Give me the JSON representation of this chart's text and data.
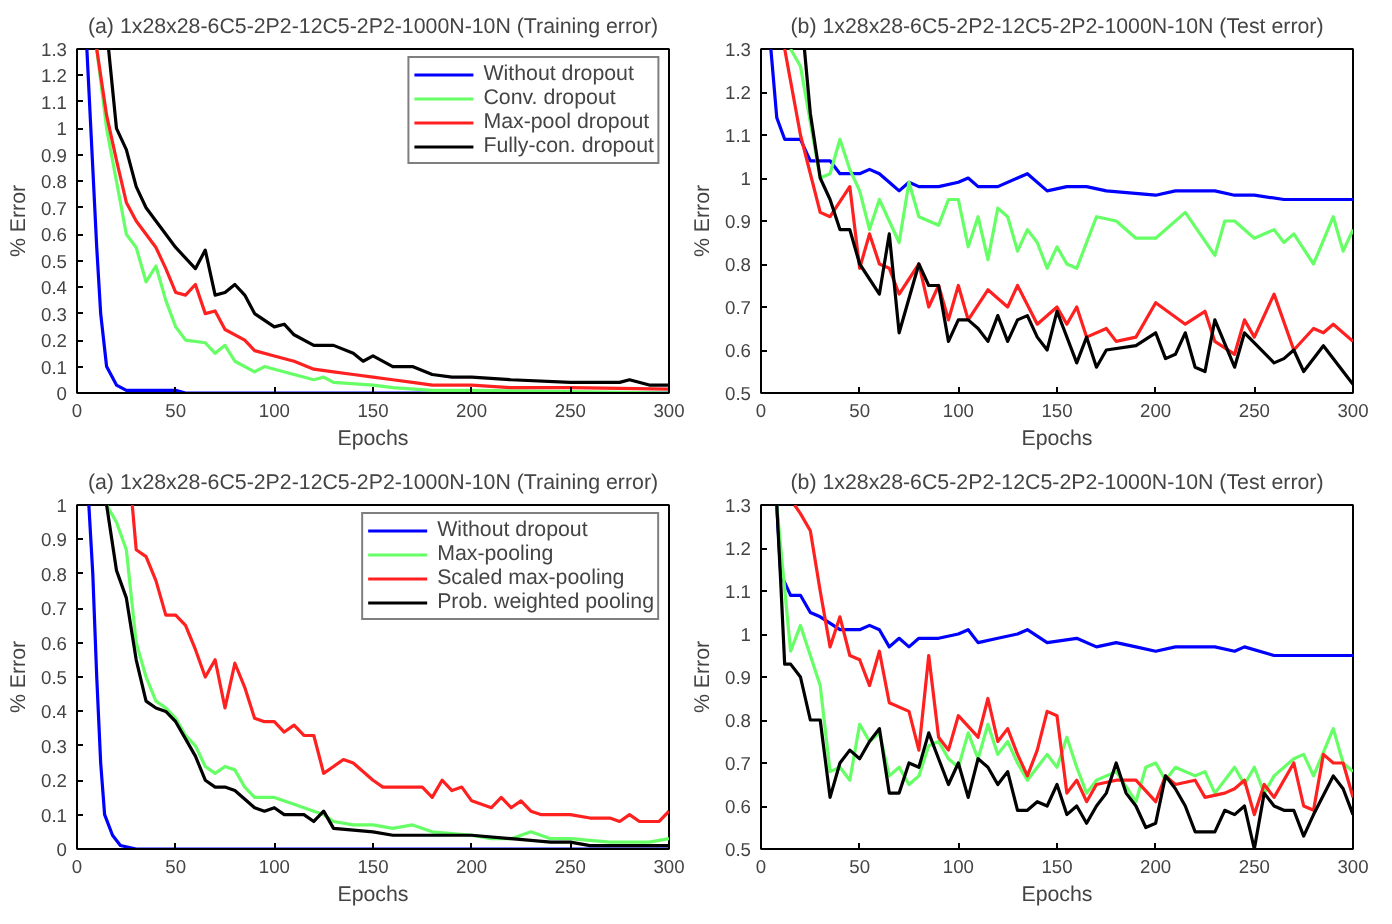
{
  "chart_data": [
    {
      "type": "line",
      "title": "(a) 1x28x28-6C5-2P2-12C5-2P2-1000N-10N (Training error)",
      "xlabel": "Epochs",
      "ylabel": "% Error",
      "xlim": [
        0,
        300
      ],
      "ylim": [
        0,
        1.3
      ],
      "xticks": [
        0,
        50,
        100,
        150,
        200,
        250,
        300
      ],
      "yticks": [
        0,
        0.1,
        0.2,
        0.3,
        0.4,
        0.5,
        0.6,
        0.7,
        0.8,
        0.9,
        1,
        1.1,
        1.2,
        1.3
      ],
      "grid": false,
      "legend": "top right",
      "line_style": "solid",
      "series": [
        {
          "name": "Without dropout",
          "color": "#0000ff",
          "x": [
            5,
            8,
            10,
            12,
            15,
            20,
            25,
            50,
            55,
            300
          ],
          "values": [
            1.3,
            0.85,
            0.55,
            0.3,
            0.1,
            0.03,
            0.01,
            0.01,
            0,
            0
          ]
        },
        {
          "name": "Conv. dropout",
          "color": "#66ff66",
          "x": [
            10,
            15,
            20,
            25,
            30,
            35,
            40,
            45,
            50,
            55,
            65,
            70,
            75,
            80,
            90,
            95,
            100,
            110,
            120,
            125,
            130,
            150,
            160,
            180,
            200,
            250,
            300
          ],
          "values": [
            1.3,
            1.0,
            0.8,
            0.6,
            0.55,
            0.42,
            0.48,
            0.35,
            0.25,
            0.2,
            0.19,
            0.15,
            0.18,
            0.12,
            0.08,
            0.1,
            0.09,
            0.07,
            0.05,
            0.06,
            0.04,
            0.03,
            0.02,
            0.01,
            0.01,
            0.005,
            0
          ]
        },
        {
          "name": "Max-pool dropout",
          "color": "#ff2020",
          "x": [
            10,
            15,
            20,
            25,
            30,
            40,
            45,
            50,
            55,
            60,
            65,
            70,
            75,
            85,
            90,
            100,
            110,
            120,
            130,
            140,
            150,
            160,
            170,
            180,
            200,
            220,
            250,
            300
          ],
          "values": [
            1.3,
            1.05,
            0.88,
            0.72,
            0.65,
            0.55,
            0.47,
            0.38,
            0.37,
            0.41,
            0.3,
            0.31,
            0.24,
            0.2,
            0.16,
            0.14,
            0.12,
            0.09,
            0.08,
            0.07,
            0.06,
            0.05,
            0.04,
            0.03,
            0.03,
            0.02,
            0.02,
            0.015
          ]
        },
        {
          "name": "Fully-con. dropout",
          "color": "#000000",
          "x": [
            16,
            20,
            25,
            30,
            35,
            40,
            50,
            60,
            65,
            70,
            75,
            80,
            85,
            90,
            100,
            105,
            110,
            120,
            130,
            140,
            145,
            150,
            160,
            170,
            180,
            190,
            200,
            220,
            250,
            275,
            280,
            290,
            300
          ],
          "values": [
            1.3,
            1.0,
            0.92,
            0.78,
            0.7,
            0.65,
            0.55,
            0.47,
            0.54,
            0.37,
            0.38,
            0.41,
            0.37,
            0.3,
            0.25,
            0.26,
            0.22,
            0.18,
            0.18,
            0.15,
            0.12,
            0.14,
            0.1,
            0.1,
            0.07,
            0.06,
            0.06,
            0.05,
            0.04,
            0.04,
            0.05,
            0.03,
            0.03
          ]
        }
      ]
    },
    {
      "type": "line",
      "title": "(b) 1x28x28-6C5-2P2-12C5-2P2-1000N-10N (Test error)",
      "xlabel": "Epochs",
      "ylabel": "% Error",
      "xlim": [
        0,
        300
      ],
      "ylim": [
        0.5,
        1.3
      ],
      "xticks": [
        0,
        50,
        100,
        150,
        200,
        250,
        300
      ],
      "yticks": [
        0.5,
        0.6,
        0.7,
        0.8,
        0.9,
        1,
        1.1,
        1.2,
        1.3
      ],
      "grid": false,
      "legend": false,
      "line_style": "solid",
      "series": [
        {
          "color": "#0000ff",
          "x": [
            5,
            8,
            12,
            20,
            25,
            35,
            40,
            50,
            55,
            60,
            65,
            70,
            75,
            80,
            90,
            100,
            105,
            110,
            120,
            130,
            135,
            145,
            155,
            165,
            175,
            200,
            210,
            230,
            240,
            250,
            265,
            300
          ],
          "values": [
            1.3,
            1.14,
            1.09,
            1.09,
            1.04,
            1.04,
            1.01,
            1.01,
            1.02,
            1.01,
            0.99,
            0.97,
            0.99,
            0.98,
            0.98,
            0.99,
            1.0,
            0.98,
            0.98,
            1.0,
            1.01,
            0.97,
            0.98,
            0.98,
            0.97,
            0.96,
            0.97,
            0.97,
            0.96,
            0.96,
            0.95,
            0.95
          ]
        },
        {
          "color": "#66ff66",
          "x": [
            15,
            20,
            25,
            30,
            35,
            40,
            45,
            50,
            55,
            60,
            70,
            75,
            80,
            90,
            95,
            100,
            105,
            110,
            115,
            120,
            125,
            130,
            135,
            140,
            145,
            150,
            155,
            160,
            170,
            180,
            190,
            200,
            215,
            230,
            235,
            240,
            250,
            260,
            265,
            270,
            280,
            290,
            295,
            300
          ],
          "values": [
            1.3,
            1.26,
            1.13,
            1.0,
            1.01,
            1.09,
            1.02,
            0.97,
            0.88,
            0.95,
            0.85,
            0.99,
            0.91,
            0.89,
            0.95,
            0.95,
            0.84,
            0.91,
            0.81,
            0.93,
            0.91,
            0.83,
            0.88,
            0.85,
            0.79,
            0.84,
            0.8,
            0.79,
            0.91,
            0.9,
            0.86,
            0.86,
            0.92,
            0.82,
            0.9,
            0.9,
            0.86,
            0.88,
            0.85,
            0.87,
            0.8,
            0.91,
            0.83,
            0.88
          ]
        },
        {
          "color": "#ff2020",
          "x": [
            12,
            20,
            30,
            35,
            45,
            50,
            55,
            60,
            65,
            70,
            80,
            85,
            90,
            95,
            100,
            105,
            115,
            125,
            130,
            140,
            150,
            155,
            160,
            165,
            175,
            180,
            190,
            200,
            215,
            225,
            230,
            240,
            245,
            250,
            260,
            270,
            280,
            285,
            290,
            300
          ],
          "values": [
            1.3,
            1.1,
            0.92,
            0.91,
            0.98,
            0.79,
            0.87,
            0.8,
            0.79,
            0.73,
            0.8,
            0.7,
            0.75,
            0.67,
            0.75,
            0.67,
            0.74,
            0.7,
            0.75,
            0.66,
            0.7,
            0.66,
            0.7,
            0.63,
            0.65,
            0.62,
            0.63,
            0.71,
            0.66,
            0.69,
            0.62,
            0.59,
            0.67,
            0.63,
            0.73,
            0.6,
            0.65,
            0.64,
            0.66,
            0.62
          ]
        },
        {
          "color": "#000000",
          "x": [
            22,
            25,
            30,
            35,
            40,
            45,
            50,
            60,
            65,
            70,
            80,
            85,
            90,
            95,
            100,
            105,
            110,
            115,
            120,
            125,
            130,
            135,
            140,
            145,
            150,
            160,
            165,
            170,
            175,
            190,
            200,
            205,
            210,
            215,
            220,
            225,
            230,
            240,
            245,
            260,
            265,
            270,
            275,
            285,
            295,
            300
          ],
          "values": [
            1.3,
            1.15,
            1.0,
            0.95,
            0.88,
            0.88,
            0.8,
            0.73,
            0.87,
            0.64,
            0.8,
            0.75,
            0.75,
            0.62,
            0.67,
            0.67,
            0.65,
            0.62,
            0.68,
            0.62,
            0.67,
            0.68,
            0.63,
            0.6,
            0.69,
            0.57,
            0.63,
            0.56,
            0.6,
            0.61,
            0.64,
            0.58,
            0.59,
            0.64,
            0.56,
            0.55,
            0.67,
            0.56,
            0.64,
            0.57,
            0.58,
            0.6,
            0.55,
            0.61,
            0.55,
            0.52
          ]
        }
      ]
    },
    {
      "type": "line",
      "title": "(a) 1x28x28-6C5-2P2-12C5-2P2-1000N-10N (Training error)",
      "xlabel": "Epochs",
      "ylabel": "% Error",
      "xlim": [
        0,
        300
      ],
      "ylim": [
        0,
        1
      ],
      "xticks": [
        0,
        50,
        100,
        150,
        200,
        250,
        300
      ],
      "yticks": [
        0,
        0.1,
        0.2,
        0.3,
        0.4,
        0.5,
        0.6,
        0.7,
        0.8,
        0.9,
        1
      ],
      "grid": false,
      "legend": "top right",
      "line_style": "solid",
      "series": [
        {
          "name": "Without dropout",
          "color": "#0000ff",
          "x": [
            6,
            8,
            10,
            12,
            14,
            18,
            22,
            30,
            300
          ],
          "values": [
            1.0,
            0.8,
            0.5,
            0.25,
            0.1,
            0.04,
            0.01,
            0,
            0
          ]
        },
        {
          "name": "Max-pooling",
          "color": "#66ff66",
          "x": [
            15,
            20,
            25,
            30,
            35,
            40,
            45,
            50,
            55,
            60,
            65,
            70,
            75,
            80,
            85,
            90,
            100,
            110,
            120,
            125,
            130,
            140,
            150,
            160,
            170,
            180,
            200,
            210,
            220,
            230,
            240,
            250,
            270,
            290,
            300
          ],
          "values": [
            1.0,
            0.95,
            0.87,
            0.6,
            0.5,
            0.43,
            0.41,
            0.38,
            0.33,
            0.3,
            0.24,
            0.22,
            0.24,
            0.23,
            0.18,
            0.15,
            0.15,
            0.13,
            0.11,
            0.1,
            0.08,
            0.07,
            0.07,
            0.06,
            0.07,
            0.05,
            0.04,
            0.03,
            0.03,
            0.05,
            0.03,
            0.03,
            0.02,
            0.02,
            0.03
          ]
        },
        {
          "name": "Scaled max-pooling",
          "color": "#ff2020",
          "x": [
            28,
            30,
            35,
            40,
            45,
            50,
            55,
            60,
            65,
            70,
            75,
            80,
            85,
            90,
            95,
            100,
            105,
            110,
            115,
            120,
            125,
            130,
            135,
            140,
            150,
            155,
            175,
            180,
            185,
            190,
            195,
            200,
            210,
            215,
            220,
            225,
            230,
            235,
            250,
            260,
            270,
            275,
            280,
            285,
            295,
            300
          ],
          "values": [
            1.0,
            0.87,
            0.85,
            0.78,
            0.68,
            0.68,
            0.65,
            0.58,
            0.5,
            0.55,
            0.41,
            0.54,
            0.47,
            0.38,
            0.37,
            0.37,
            0.34,
            0.36,
            0.33,
            0.33,
            0.22,
            0.24,
            0.26,
            0.25,
            0.2,
            0.18,
            0.18,
            0.15,
            0.2,
            0.17,
            0.18,
            0.14,
            0.12,
            0.15,
            0.12,
            0.14,
            0.11,
            0.1,
            0.1,
            0.09,
            0.09,
            0.08,
            0.1,
            0.08,
            0.08,
            0.11
          ]
        },
        {
          "name": "Prob. weighted pooling",
          "color": "#000000",
          "x": [
            15,
            20,
            25,
            30,
            35,
            40,
            45,
            50,
            55,
            60,
            65,
            70,
            75,
            80,
            90,
            95,
            100,
            105,
            110,
            115,
            120,
            125,
            130,
            150,
            160,
            180,
            200,
            220,
            240,
            250,
            260,
            300
          ],
          "values": [
            1.0,
            0.81,
            0.73,
            0.55,
            0.43,
            0.41,
            0.4,
            0.37,
            0.32,
            0.27,
            0.2,
            0.18,
            0.18,
            0.17,
            0.12,
            0.11,
            0.12,
            0.1,
            0.1,
            0.1,
            0.08,
            0.11,
            0.06,
            0.05,
            0.04,
            0.04,
            0.04,
            0.03,
            0.02,
            0.02,
            0.01,
            0.01
          ]
        }
      ]
    },
    {
      "type": "line",
      "title": "(b) 1x28x28-6C5-2P2-12C5-2P2-1000N-10N (Test error)",
      "xlabel": "Epochs",
      "ylabel": "% Error",
      "xlim": [
        0,
        300
      ],
      "ylim": [
        0.5,
        1.3
      ],
      "xticks": [
        0,
        50,
        100,
        150,
        200,
        250,
        300
      ],
      "yticks": [
        0.5,
        0.6,
        0.7,
        0.8,
        0.9,
        1,
        1.1,
        1.2,
        1.3
      ],
      "grid": false,
      "legend": false,
      "line_style": "solid",
      "series": [
        {
          "color": "#0000ff",
          "x": [
            8,
            10,
            15,
            20,
            25,
            30,
            40,
            50,
            55,
            60,
            65,
            70,
            75,
            80,
            90,
            100,
            105,
            110,
            120,
            130,
            135,
            145,
            160,
            170,
            180,
            190,
            200,
            210,
            230,
            240,
            245,
            260,
            270,
            300
          ],
          "values": [
            1.3,
            1.14,
            1.09,
            1.09,
            1.05,
            1.04,
            1.01,
            1.01,
            1.02,
            1.01,
            0.97,
            0.99,
            0.97,
            0.99,
            0.99,
            1.0,
            1.01,
            0.98,
            0.99,
            1.0,
            1.01,
            0.98,
            0.99,
            0.97,
            0.98,
            0.97,
            0.96,
            0.97,
            0.97,
            0.96,
            0.97,
            0.95,
            0.95,
            0.95
          ]
        },
        {
          "color": "#66ff66",
          "x": [
            8,
            10,
            15,
            20,
            25,
            30,
            35,
            40,
            45,
            50,
            55,
            60,
            65,
            70,
            75,
            80,
            85,
            90,
            95,
            100,
            105,
            110,
            115,
            120,
            125,
            130,
            135,
            140,
            145,
            150,
            155,
            160,
            165,
            170,
            175,
            180,
            190,
            195,
            200,
            205,
            210,
            220,
            225,
            230,
            240,
            245,
            250,
            255,
            260,
            270,
            275,
            280,
            290,
            295,
            300
          ],
          "values": [
            1.3,
            1.2,
            0.96,
            1.02,
            0.95,
            0.88,
            0.68,
            0.69,
            0.66,
            0.79,
            0.75,
            0.77,
            0.67,
            0.69,
            0.65,
            0.67,
            0.74,
            0.75,
            0.71,
            0.69,
            0.77,
            0.71,
            0.79,
            0.72,
            0.75,
            0.7,
            0.66,
            0.69,
            0.72,
            0.69,
            0.76,
            0.69,
            0.63,
            0.66,
            0.67,
            0.68,
            0.61,
            0.69,
            0.7,
            0.66,
            0.69,
            0.67,
            0.68,
            0.63,
            0.69,
            0.65,
            0.69,
            0.63,
            0.67,
            0.71,
            0.72,
            0.67,
            0.78,
            0.7,
            0.68
          ]
        },
        {
          "color": "#ff2020",
          "x": [
            17,
            20,
            25,
            30,
            35,
            40,
            45,
            50,
            55,
            60,
            65,
            75,
            80,
            85,
            90,
            95,
            100,
            110,
            115,
            120,
            125,
            130,
            135,
            140,
            145,
            150,
            155,
            160,
            165,
            170,
            180,
            190,
            200,
            205,
            210,
            220,
            225,
            235,
            240,
            245,
            250,
            255,
            260,
            270,
            275,
            280,
            285,
            290,
            295,
            300
          ],
          "values": [
            1.3,
            1.28,
            1.24,
            1.1,
            0.97,
            1.04,
            0.95,
            0.94,
            0.88,
            0.96,
            0.84,
            0.82,
            0.73,
            0.95,
            0.76,
            0.73,
            0.81,
            0.76,
            0.85,
            0.75,
            0.78,
            0.72,
            0.67,
            0.73,
            0.82,
            0.81,
            0.63,
            0.66,
            0.61,
            0.65,
            0.66,
            0.66,
            0.61,
            0.67,
            0.65,
            0.66,
            0.62,
            0.63,
            0.64,
            0.66,
            0.58,
            0.65,
            0.62,
            0.7,
            0.6,
            0.59,
            0.72,
            0.7,
            0.7,
            0.62
          ]
        },
        {
          "color": "#000000",
          "x": [
            8,
            10,
            12,
            15,
            20,
            25,
            30,
            35,
            40,
            45,
            50,
            55,
            60,
            65,
            70,
            75,
            80,
            85,
            90,
            95,
            100,
            105,
            110,
            115,
            120,
            125,
            130,
            135,
            140,
            145,
            150,
            155,
            160,
            165,
            170,
            175,
            180,
            185,
            190,
            195,
            200,
            205,
            210,
            215,
            220,
            230,
            235,
            240,
            245,
            250,
            255,
            260,
            265,
            270,
            275,
            280,
            290,
            295,
            300
          ],
          "values": [
            1.3,
            1.12,
            0.93,
            0.93,
            0.9,
            0.8,
            0.8,
            0.62,
            0.7,
            0.73,
            0.71,
            0.75,
            0.78,
            0.63,
            0.63,
            0.7,
            0.69,
            0.77,
            0.71,
            0.65,
            0.7,
            0.62,
            0.71,
            0.69,
            0.65,
            0.68,
            0.59,
            0.59,
            0.61,
            0.6,
            0.65,
            0.58,
            0.6,
            0.56,
            0.6,
            0.63,
            0.7,
            0.63,
            0.6,
            0.55,
            0.56,
            0.67,
            0.64,
            0.6,
            0.54,
            0.54,
            0.59,
            0.58,
            0.6,
            0.5,
            0.63,
            0.6,
            0.59,
            0.59,
            0.53,
            0.58,
            0.67,
            0.64,
            0.58
          ]
        }
      ]
    }
  ]
}
